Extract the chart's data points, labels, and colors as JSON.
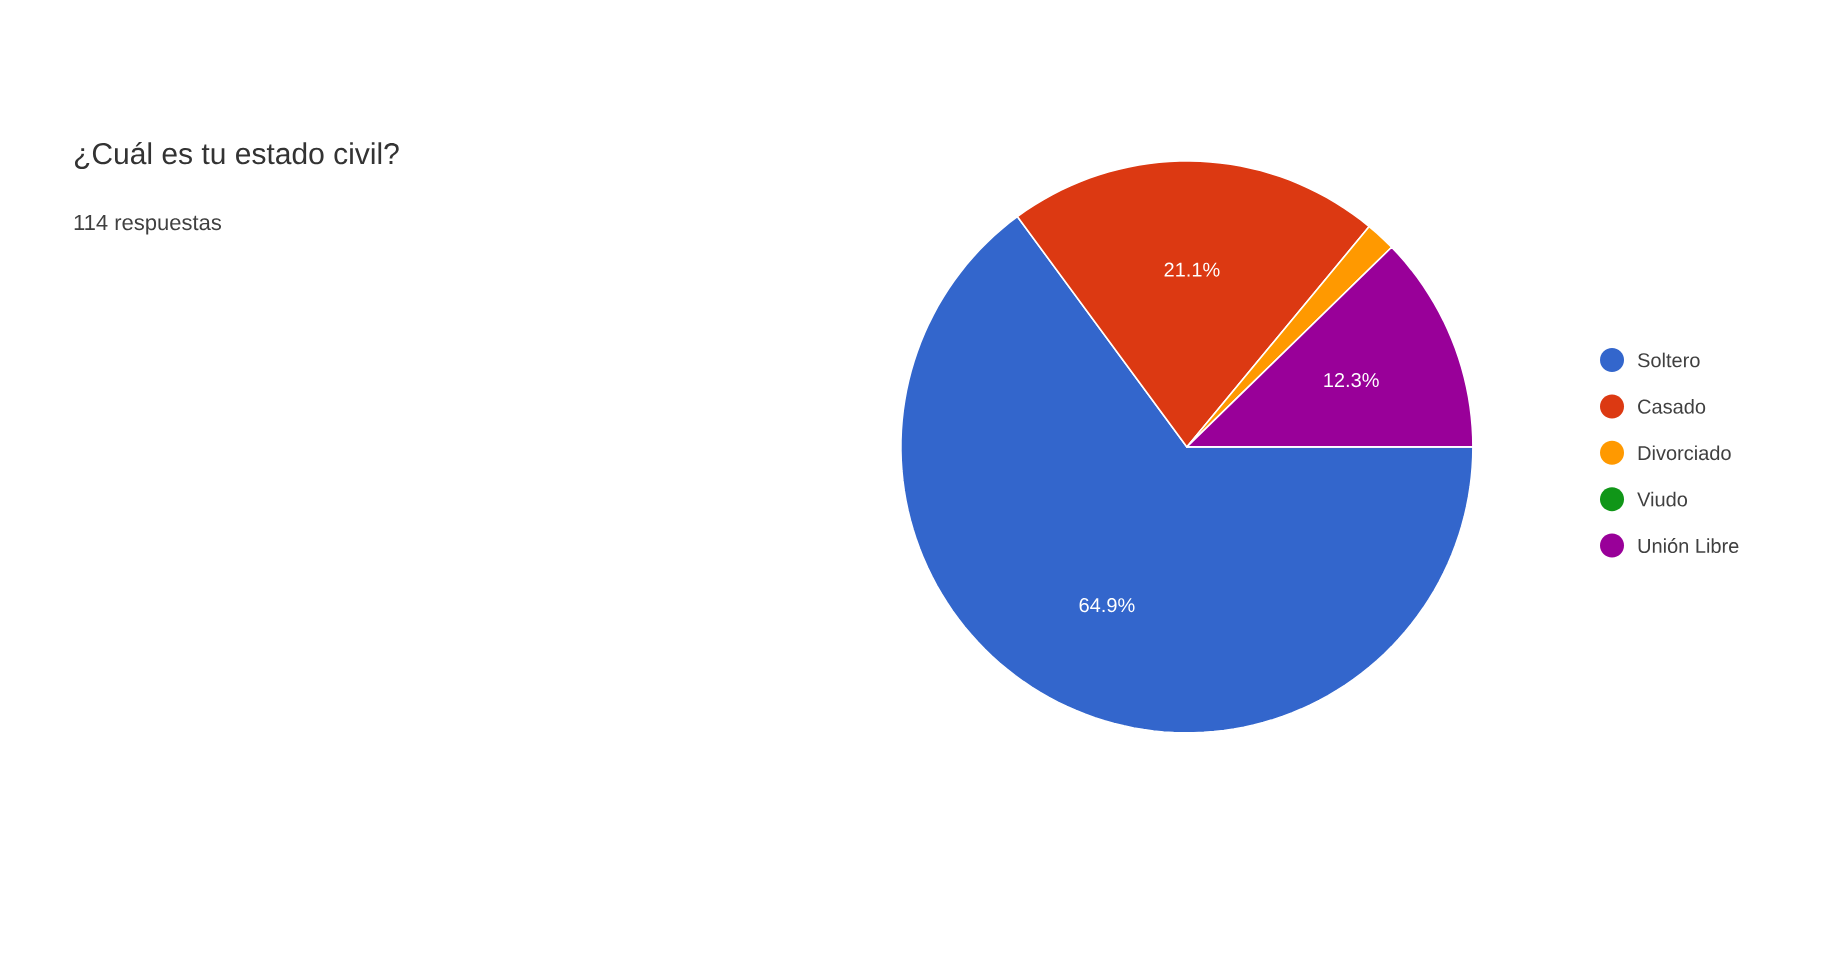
{
  "chart_data": {
    "type": "pie",
    "title": "¿Cuál es tu estado civil?",
    "subtitle": "114 respuestas",
    "categories": [
      "Soltero",
      "Casado",
      "Divorciado",
      "Viudo",
      "Unión Libre"
    ],
    "values": [
      64.9,
      21.1,
      1.7,
      0,
      12.3
    ],
    "colors": [
      "#3366cc",
      "#dc3912",
      "#ff9900",
      "#109618",
      "#990099"
    ],
    "value_labels": [
      "64.9%",
      "21.1%",
      null,
      null,
      "12.3%"
    ],
    "legend": "right"
  }
}
